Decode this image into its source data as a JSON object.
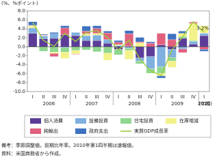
{
  "chart_data": {
    "type": "stacked-bar-line",
    "y_label": "(%、%ポイント)",
    "x_label": "(年期)",
    "categories": [
      "I",
      "II",
      "III",
      "IV",
      "I",
      "II",
      "III",
      "IV",
      "I",
      "II",
      "III",
      "IV",
      "I",
      "II",
      "III",
      "IV",
      "I"
    ],
    "years": [
      "2006",
      "2007",
      "2008",
      "2009",
      "2010"
    ],
    "ylim": [
      -10,
      8
    ],
    "yticks": [
      {
        "value": 8,
        "label": "8.0"
      },
      {
        "value": 6,
        "label": "6.0"
      },
      {
        "value": 4,
        "label": "4.0"
      },
      {
        "value": 2,
        "label": "2.0"
      },
      {
        "value": 0,
        "label": "0.0"
      },
      {
        "value": -2,
        "label": "-2.0"
      },
      {
        "value": -4,
        "label": "-4.0"
      },
      {
        "value": -6,
        "label": "-6.0"
      },
      {
        "value": -8,
        "label": "-8.0"
      },
      {
        "value": -10,
        "label": "-10.0"
      }
    ],
    "series": [
      {
        "name": "個人消費",
        "color": "#5b3d99",
        "values": [
          3.0,
          1.8,
          1.9,
          2.7,
          2.5,
          1.4,
          1.4,
          0.8,
          -0.6,
          0.1,
          -2.5,
          -2.2,
          0.4,
          -0.6,
          1.9,
          0.6,
          2.5
        ]
      },
      {
        "name": "設備投資",
        "color": "#7fb0e0",
        "values": [
          1.2,
          0.6,
          1.0,
          -0.2,
          0.7,
          1.1,
          1.2,
          0.8,
          0.3,
          -0.3,
          -0.7,
          -2.7,
          -4.5,
          -1.8,
          -0.5,
          0.6,
          0.5
        ]
      },
      {
        "name": "住宅投資",
        "color": "#8fd68f",
        "values": [
          -0.1,
          -1.0,
          -1.2,
          -1.0,
          -0.8,
          -0.7,
          -1.1,
          -1.4,
          -1.2,
          -0.5,
          -0.6,
          -1.0,
          -1.4,
          -0.8,
          0.4,
          0.2,
          0.1
        ]
      },
      {
        "name": "在庫増減",
        "color": "#f2f28a",
        "values": [
          0.5,
          0.1,
          -0.3,
          -1.4,
          -0.8,
          0.4,
          0.4,
          -1.6,
          0.2,
          -2.0,
          0.9,
          -0.1,
          -0.6,
          -1.4,
          0.7,
          3.8,
          1.6
        ]
      },
      {
        "name": "純輸出",
        "color": "#e0607e",
        "values": [
          0.1,
          0.1,
          -0.7,
          1.5,
          -0.1,
          0.6,
          1.1,
          1.5,
          0.5,
          2.8,
          0.2,
          0.8,
          2.6,
          1.6,
          -0.8,
          0.3,
          -0.6
        ]
      },
      {
        "name": "政府支出",
        "color": "#3f72c0",
        "values": [
          0.8,
          0.2,
          0.3,
          0.5,
          0.0,
          1.1,
          0.6,
          0.4,
          0.4,
          0.7,
          1.0,
          0.3,
          -0.5,
          1.3,
          0.5,
          0.0,
          -0.4
        ]
      },
      {
        "name": "実質GDP成長率",
        "color": "#9ccc3c",
        "type": "line",
        "values": [
          5.4,
          1.4,
          0.1,
          3.0,
          1.2,
          3.2,
          3.6,
          2.1,
          -0.7,
          1.5,
          -2.7,
          -5.4,
          -6.4,
          -0.7,
          2.2,
          5.6,
          3.2
        ]
      }
    ],
    "annotation": "3.2%",
    "notes": [
      "備考：季節調整値。前期比年率。2010年第1四半期は速報値。",
      "資料：米国商務省から作成。"
    ]
  }
}
